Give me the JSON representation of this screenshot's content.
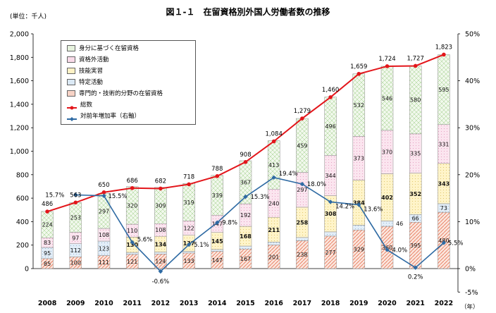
{
  "title": "図１-１　在留資格別外国人労働者数の推移",
  "y_left_label": "(単位：千人)",
  "x_unit_label": "（年）",
  "legend": [
    {
      "key": "identity",
      "label": "身分に基づく在留資格",
      "kind": "swatch",
      "fill": "#e6f2dd",
      "pattern": "patGreen"
    },
    {
      "key": "extracurricular",
      "label": "資格外活動",
      "kind": "swatch",
      "fill": "#f9dbe9",
      "pattern": "patPink"
    },
    {
      "key": "trainee",
      "label": "技能実習",
      "kind": "swatch",
      "fill": "#fff2c6",
      "pattern": "patYellow"
    },
    {
      "key": "specified",
      "label": "特定活動",
      "kind": "swatch",
      "fill": "#dbe9f5",
      "pattern": "patBlue"
    },
    {
      "key": "professional",
      "label": "専門的・技術的分野の在留資格",
      "kind": "swatch",
      "fill": "#f7d3c6",
      "pattern": "patRed"
    },
    {
      "key": "total",
      "label": "総数",
      "kind": "line",
      "color": "#e3161b"
    },
    {
      "key": "growth",
      "label": "対前年増加率（右軸）",
      "kind": "line",
      "color": "#2e6aa3"
    }
  ],
  "chart_data": {
    "type": "bar",
    "stacked": true,
    "title": "図１-１　在留資格別外国人労働者数の推移",
    "ylabel": "(単位：千人)",
    "xlabel": "（年）",
    "categories": [
      "2008",
      "2009",
      "2010",
      "2011",
      "2012",
      "2013",
      "2014",
      "2015",
      "2016",
      "2017",
      "2018",
      "2019",
      "2020",
      "2021",
      "2022"
    ],
    "ylim": [
      0,
      2000
    ],
    "y_ticks": [
      "0",
      "200",
      "400",
      "600",
      "800",
      "1,000",
      "1,200",
      "1,400",
      "1,600",
      "1,800",
      "2,000"
    ],
    "y2lim": [
      -5,
      50
    ],
    "y2_ticks": [
      "-5%",
      "0%",
      "10%",
      "20%",
      "30%",
      "40%",
      "50%"
    ],
    "grid": false,
    "legend_position": "top-left",
    "series": [
      {
        "name": "専門的・技術的分野の在留資格",
        "key": "professional",
        "values": [
          85,
          100,
          111,
          121,
          124,
          133,
          147,
          167,
          201,
          238,
          277,
          329,
          360,
          395,
          480
        ],
        "labels": [
          "85",
          "100",
          "111",
          "121",
          "124",
          "133",
          "147",
          "167",
          "201",
          "238",
          "277",
          "329",
          "360",
          "395",
          "480"
        ]
      },
      {
        "name": "特定活動",
        "key": "specified",
        "values": [
          95,
          112,
          123,
          17,
          17,
          14,
          16,
          25,
          25,
          27,
          36,
          41,
          46,
          66,
          73
        ],
        "labels": [
          "95",
          "112",
          "123",
          "",
          "",
          "",
          "",
          "",
          "",
          "",
          "",
          "",
          "46",
          "66",
          "73"
        ]
      },
      {
        "name": "技能実習",
        "key": "trainee",
        "values": [
          0,
          0,
          0,
          130,
          134,
          137,
          145,
          168,
          211,
          258,
          308,
          384,
          402,
          352,
          343
        ],
        "labels": [
          "",
          "",
          "",
          "130",
          "134",
          "137",
          "145",
          "168",
          "211",
          "258",
          "308",
          "384",
          "402",
          "352",
          "343"
        ]
      },
      {
        "name": "資格外活動",
        "key": "extracurricular",
        "values": [
          83,
          97,
          108,
          110,
          108,
          122,
          147,
          192,
          240,
          297,
          344,
          373,
          370,
          335,
          331
        ],
        "labels": [
          "83",
          "97",
          "108",
          "110",
          "108",
          "122",
          "147",
          "192",
          "240",
          "297",
          "344",
          "373",
          "370",
          "335",
          "331"
        ]
      },
      {
        "name": "身分に基づく在留資格",
        "key": "identity",
        "values": [
          224,
          253,
          297,
          320,
          309,
          319,
          339,
          367,
          413,
          459,
          496,
          532,
          546,
          580,
          595
        ],
        "labels": [
          "224",
          "253",
          "297",
          "320",
          "309",
          "319",
          "339",
          "367",
          "413",
          "459",
          "496",
          "532",
          "546",
          "580",
          "595"
        ]
      },
      {
        "name": "総数",
        "key": "total",
        "type": "line",
        "axis": "left",
        "values": [
          486,
          563,
          650,
          686,
          682,
          718,
          788,
          908,
          1084,
          1279,
          1460,
          1659,
          1724,
          1727,
          1823
        ],
        "labels": [
          "486",
          "563",
          "650",
          "686",
          "682",
          "718",
          "788",
          "908",
          "1,084",
          "1,279",
          "1,460",
          "1,659",
          "1,724",
          "1,727",
          "1,823"
        ]
      },
      {
        "name": "対前年増加率（右軸）",
        "key": "growth",
        "type": "line",
        "axis": "right",
        "values": [
          null,
          15.7,
          15.5,
          5.6,
          -0.6,
          5.1,
          9.8,
          15.3,
          19.4,
          18.0,
          14.2,
          13.6,
          4.0,
          0.2,
          5.5
        ],
        "labels": [
          "",
          "15.7%",
          "15.5%",
          "5.6%",
          "-0.6%",
          "5.1%",
          "9.8%",
          "15.3%",
          "19.4%",
          "18.0%",
          "14.2%",
          "13.6%",
          "4.0%",
          "0.2%",
          "5.5%"
        ]
      }
    ]
  }
}
